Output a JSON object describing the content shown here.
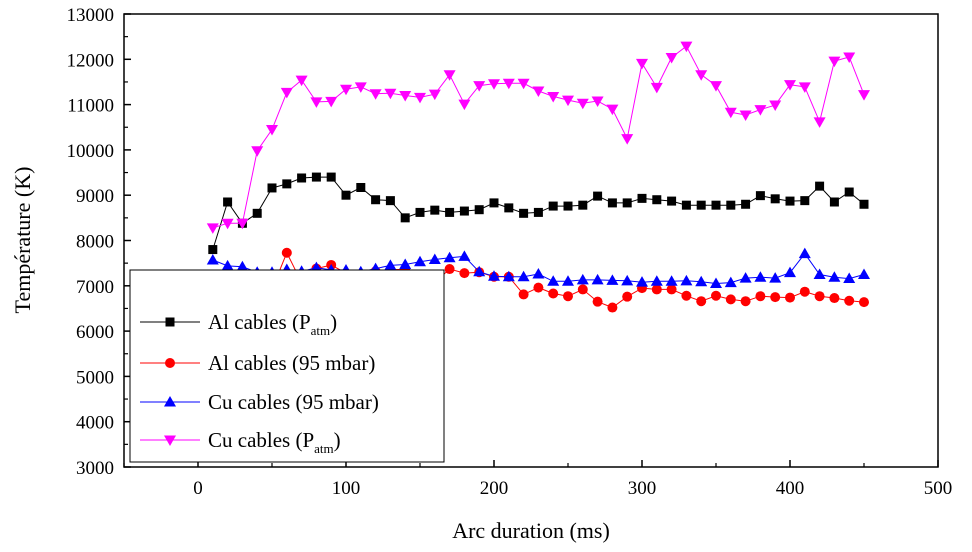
{
  "chart_data": {
    "type": "line",
    "xlabel": "Arc duration (ms)",
    "ylabel": "Température (K)",
    "xlim": [
      -50,
      500
    ],
    "ylim": [
      3000,
      13000
    ],
    "xticks": [
      0,
      100,
      200,
      300,
      400,
      500
    ],
    "yticks": [
      3000,
      4000,
      5000,
      6000,
      7000,
      8000,
      9000,
      10000,
      11000,
      12000,
      13000
    ],
    "grid": false,
    "legend_position": "bottom-left",
    "x": [
      10,
      20,
      30,
      40,
      50,
      60,
      70,
      80,
      90,
      100,
      110,
      120,
      130,
      140,
      150,
      160,
      170,
      180,
      190,
      200,
      210,
      220,
      230,
      240,
      250,
      260,
      270,
      280,
      290,
      300,
      310,
      320,
      330,
      340,
      350,
      360,
      370,
      380,
      390,
      400,
      410,
      420,
      430,
      440,
      450
    ],
    "series": [
      {
        "name": "Al cables (P",
        "name_sub": "atm",
        "name_suffix": ")",
        "color": "#000000",
        "marker": "square",
        "values": [
          7800,
          8850,
          8380,
          8600,
          9160,
          9250,
          9380,
          9400,
          9400,
          9000,
          9170,
          8900,
          8880,
          8500,
          8620,
          8670,
          8620,
          8650,
          8680,
          8830,
          8720,
          8600,
          8620,
          8760,
          8760,
          8780,
          8980,
          8830,
          8830,
          8930,
          8900,
          8870,
          8780,
          8780,
          8780,
          8780,
          8800,
          8990,
          8920,
          8870,
          8880,
          9200,
          8850,
          9070,
          8800
        ]
      },
      {
        "name": "Al cables (95 mbar)",
        "color": "#ff0000",
        "marker": "circle",
        "values": [
          7200,
          7300,
          7080,
          7200,
          6920,
          7730,
          7070,
          7380,
          7460,
          7280,
          7210,
          7320,
          7360,
          7360,
          6930,
          7070,
          7370,
          7280,
          7300,
          7200,
          7200,
          6810,
          6960,
          6830,
          6770,
          6920,
          6650,
          6520,
          6760,
          6950,
          6920,
          6920,
          6780,
          6660,
          6780,
          6700,
          6660,
          6770,
          6750,
          6740,
          6870,
          6770,
          6730,
          6670,
          6640
        ]
      },
      {
        "name": "Cu cables (95 mbar)",
        "color": "#0000ff",
        "marker": "triangle-up",
        "values": [
          7570,
          7440,
          7420,
          7300,
          7300,
          7360,
          7320,
          7400,
          7350,
          7350,
          7310,
          7380,
          7450,
          7470,
          7530,
          7580,
          7620,
          7650,
          7310,
          7210,
          7200,
          7200,
          7260,
          7100,
          7100,
          7130,
          7130,
          7120,
          7110,
          7080,
          7100,
          7100,
          7110,
          7090,
          7050,
          7070,
          7170,
          7190,
          7170,
          7290,
          7710,
          7250,
          7190,
          7160,
          7250
        ]
      },
      {
        "name": "Cu cables (P",
        "name_sub": "atm",
        "name_suffix": ")",
        "color": "#ff00ff",
        "marker": "triangle-down",
        "values": [
          8280,
          8380,
          8380,
          9980,
          10450,
          11270,
          11540,
          11060,
          11070,
          11340,
          11390,
          11240,
          11250,
          11200,
          11160,
          11230,
          11660,
          11010,
          11420,
          11460,
          11470,
          11470,
          11300,
          11180,
          11100,
          11030,
          11080,
          10900,
          10250,
          11910,
          11380,
          12040,
          12290,
          11660,
          11420,
          10830,
          10770,
          10890,
          10990,
          11440,
          11390,
          10620,
          11960,
          12050,
          11220
        ]
      }
    ]
  }
}
